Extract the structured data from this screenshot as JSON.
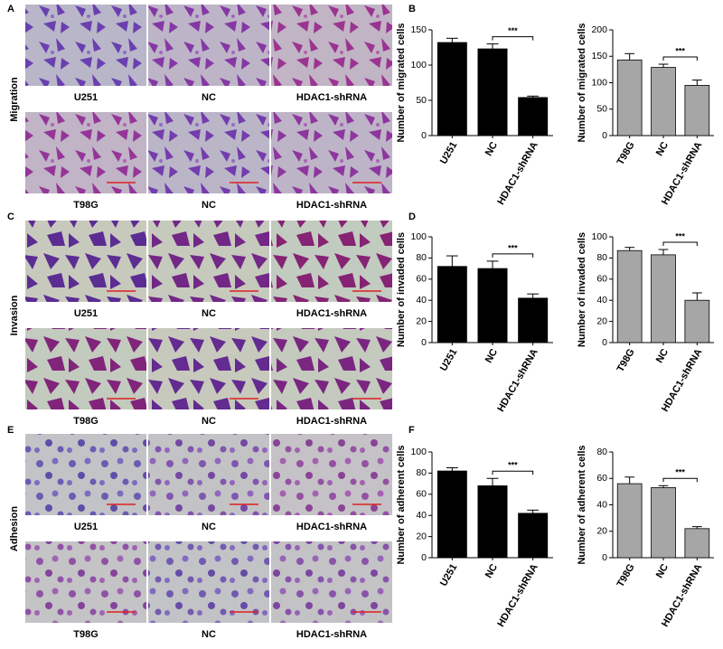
{
  "panel_labels": [
    "A",
    "B",
    "C",
    "D",
    "E",
    "F"
  ],
  "image_sections": [
    {
      "label": "Migration",
      "rows": [
        [
          "U251",
          "NC",
          "HDAC1-shRNA"
        ],
        [
          "T98G",
          "NC",
          "HDAC1-shRNA"
        ]
      ]
    },
    {
      "label": "Invasion",
      "rows": [
        [
          "U251",
          "NC",
          "HDAC1-shRNA"
        ],
        [
          "T98G",
          "NC",
          "HDAC1-shRNA"
        ]
      ]
    },
    {
      "label": "Adhesion",
      "rows": [
        [
          "U251",
          "NC",
          "HDAC1-shRNA"
        ],
        [
          "T98G",
          "NC",
          "HDAC1-shRNA"
        ]
      ]
    }
  ],
  "chart_data": [
    {
      "type": "bar",
      "ylabel": "Number of migrated cells",
      "categories": [
        "U251",
        "NC",
        "HDAC1-shRNA"
      ],
      "values": [
        132,
        123,
        54
      ],
      "errors": [
        6,
        7,
        2
      ],
      "color": "#000000",
      "ylim": [
        0,
        150
      ],
      "yticks": [
        0,
        50,
        100,
        150
      ],
      "annotation": "***"
    },
    {
      "type": "bar",
      "ylabel": "Number of migrated cells",
      "categories": [
        "T98G",
        "NC",
        "HDAC1-shRNA"
      ],
      "values": [
        143,
        129,
        95
      ],
      "errors": [
        12,
        6,
        10
      ],
      "color": "#a6a6a6",
      "ylim": [
        0,
        200
      ],
      "yticks": [
        0,
        50,
        100,
        150,
        200
      ],
      "annotation": "***"
    },
    {
      "type": "bar",
      "ylabel": "Number of invaded cells",
      "categories": [
        "U251",
        "NC",
        "HDAC1-shRNA"
      ],
      "values": [
        72,
        70,
        42
      ],
      "errors": [
        10,
        7,
        4
      ],
      "color": "#000000",
      "ylim": [
        0,
        100
      ],
      "yticks": [
        0,
        20,
        40,
        60,
        80,
        100
      ],
      "annotation": "***"
    },
    {
      "type": "bar",
      "ylabel": "Number of invaded cells",
      "categories": [
        "T98G",
        "NC",
        "HDAC1-shRNA"
      ],
      "values": [
        87,
        83,
        40
      ],
      "errors": [
        3,
        5,
        7
      ],
      "color": "#a6a6a6",
      "ylim": [
        0,
        100
      ],
      "yticks": [
        0,
        20,
        40,
        60,
        80,
        100
      ],
      "annotation": "***"
    },
    {
      "type": "bar",
      "ylabel": "Number of adherent cells",
      "categories": [
        "U251",
        "NC",
        "HDAC1-shRNA"
      ],
      "values": [
        82,
        68,
        42
      ],
      "errors": [
        3,
        7,
        3
      ],
      "color": "#000000",
      "ylim": [
        0,
        100
      ],
      "yticks": [
        0,
        20,
        40,
        60,
        80,
        100
      ],
      "annotation": "***"
    },
    {
      "type": "bar",
      "ylabel": "Number of adherent cells",
      "categories": [
        "T98G",
        "NC",
        "HDAC1-shRNA"
      ],
      "values": [
        56,
        53,
        22
      ],
      "errors": [
        5,
        1.5,
        1.5
      ],
      "color": "#a6a6a6",
      "ylim": [
        0,
        80
      ],
      "yticks": [
        0,
        20,
        40,
        60,
        80
      ],
      "annotation": "***"
    }
  ]
}
